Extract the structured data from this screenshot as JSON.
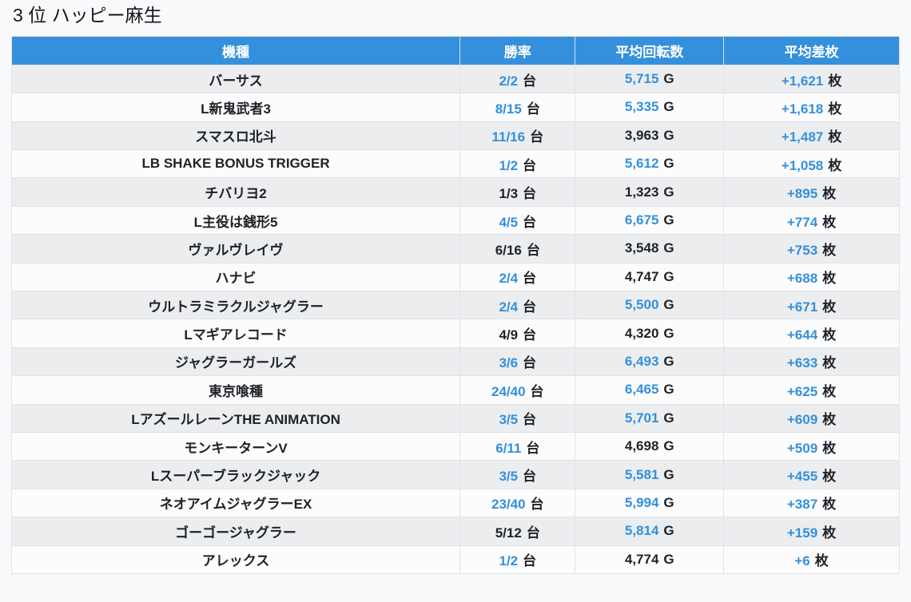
{
  "page": {
    "title": "3 位 ハッピー麻生"
  },
  "colors": {
    "page_bg": "#f8f9fb",
    "header_bg": "#3490dc",
    "header_text": "#ffffff",
    "highlight_text": "#3490dc",
    "normal_text": "#1e2227",
    "row_stripe_bg": "#ebedef",
    "row_plain_bg": "#fcfcfd",
    "border": "#e1e3e7"
  },
  "table": {
    "columns": [
      "機種",
      "勝率",
      "平均回転数",
      "平均差枚"
    ],
    "rows": [
      {
        "name": "バーサス",
        "win": "2/2",
        "win_unit": "台",
        "win_hl": true,
        "spins": "5,715",
        "spins_unit": "G",
        "spins_hl": true,
        "diff": "+1,621",
        "diff_unit": "枚",
        "diff_hl": true
      },
      {
        "name": "L新鬼武者3",
        "win": "8/15",
        "win_unit": "台",
        "win_hl": true,
        "spins": "5,335",
        "spins_unit": "G",
        "spins_hl": true,
        "diff": "+1,618",
        "diff_unit": "枚",
        "diff_hl": true
      },
      {
        "name": "スマスロ北斗",
        "win": "11/16",
        "win_unit": "台",
        "win_hl": true,
        "spins": "3,963",
        "spins_unit": "G",
        "spins_hl": false,
        "diff": "+1,487",
        "diff_unit": "枚",
        "diff_hl": true
      },
      {
        "name": "LB SHAKE BONUS TRIGGER",
        "win": "1/2",
        "win_unit": "台",
        "win_hl": true,
        "spins": "5,612",
        "spins_unit": "G",
        "spins_hl": true,
        "diff": "+1,058",
        "diff_unit": "枚",
        "diff_hl": true
      },
      {
        "name": "チバリヨ2",
        "win": "1/3",
        "win_unit": "台",
        "win_hl": false,
        "spins": "1,323",
        "spins_unit": "G",
        "spins_hl": false,
        "diff": "+895",
        "diff_unit": "枚",
        "diff_hl": true
      },
      {
        "name": "L主役は銭形5",
        "win": "4/5",
        "win_unit": "台",
        "win_hl": true,
        "spins": "6,675",
        "spins_unit": "G",
        "spins_hl": true,
        "diff": "+774",
        "diff_unit": "枚",
        "diff_hl": true
      },
      {
        "name": "ヴァルヴレイヴ",
        "win": "6/16",
        "win_unit": "台",
        "win_hl": false,
        "spins": "3,548",
        "spins_unit": "G",
        "spins_hl": false,
        "diff": "+753",
        "diff_unit": "枚",
        "diff_hl": true
      },
      {
        "name": "ハナビ",
        "win": "2/4",
        "win_unit": "台",
        "win_hl": true,
        "spins": "4,747",
        "spins_unit": "G",
        "spins_hl": false,
        "diff": "+688",
        "diff_unit": "枚",
        "diff_hl": true
      },
      {
        "name": "ウルトラミラクルジャグラー",
        "win": "2/4",
        "win_unit": "台",
        "win_hl": true,
        "spins": "5,500",
        "spins_unit": "G",
        "spins_hl": true,
        "diff": "+671",
        "diff_unit": "枚",
        "diff_hl": true
      },
      {
        "name": "Lマギアレコード",
        "win": "4/9",
        "win_unit": "台",
        "win_hl": false,
        "spins": "4,320",
        "spins_unit": "G",
        "spins_hl": false,
        "diff": "+644",
        "diff_unit": "枚",
        "diff_hl": true
      },
      {
        "name": "ジャグラーガールズ",
        "win": "3/6",
        "win_unit": "台",
        "win_hl": true,
        "spins": "6,493",
        "spins_unit": "G",
        "spins_hl": true,
        "diff": "+633",
        "diff_unit": "枚",
        "diff_hl": true
      },
      {
        "name": "東京喰種",
        "win": "24/40",
        "win_unit": "台",
        "win_hl": true,
        "spins": "6,465",
        "spins_unit": "G",
        "spins_hl": true,
        "diff": "+625",
        "diff_unit": "枚",
        "diff_hl": true
      },
      {
        "name": "LアズールレーンTHE ANIMATION",
        "win": "3/5",
        "win_unit": "台",
        "win_hl": true,
        "spins": "5,701",
        "spins_unit": "G",
        "spins_hl": true,
        "diff": "+609",
        "diff_unit": "枚",
        "diff_hl": true
      },
      {
        "name": "モンキーターンV",
        "win": "6/11",
        "win_unit": "台",
        "win_hl": true,
        "spins": "4,698",
        "spins_unit": "G",
        "spins_hl": false,
        "diff": "+509",
        "diff_unit": "枚",
        "diff_hl": true
      },
      {
        "name": "Lスーパーブラックジャック",
        "win": "3/5",
        "win_unit": "台",
        "win_hl": true,
        "spins": "5,581",
        "spins_unit": "G",
        "spins_hl": true,
        "diff": "+455",
        "diff_unit": "枚",
        "diff_hl": true
      },
      {
        "name": "ネオアイムジャグラーEX",
        "win": "23/40",
        "win_unit": "台",
        "win_hl": true,
        "spins": "5,994",
        "spins_unit": "G",
        "spins_hl": true,
        "diff": "+387",
        "diff_unit": "枚",
        "diff_hl": true
      },
      {
        "name": "ゴーゴージャグラー",
        "win": "5/12",
        "win_unit": "台",
        "win_hl": false,
        "spins": "5,814",
        "spins_unit": "G",
        "spins_hl": true,
        "diff": "+159",
        "diff_unit": "枚",
        "diff_hl": true
      },
      {
        "name": "アレックス",
        "win": "1/2",
        "win_unit": "台",
        "win_hl": true,
        "spins": "4,774",
        "spins_unit": "G",
        "spins_hl": false,
        "diff": "+6",
        "diff_unit": "枚",
        "diff_hl": true
      }
    ]
  },
  "chart_data": {
    "type": "table",
    "title": "3 位 ハッピー麻生",
    "columns": [
      "機種",
      "勝率",
      "平均回転数",
      "平均差枚"
    ],
    "rows": [
      [
        "バーサス",
        "2/2 台",
        "5,715 G",
        "+1,621 枚"
      ],
      [
        "L新鬼武者3",
        "8/15 台",
        "5,335 G",
        "+1,618 枚"
      ],
      [
        "スマスロ北斗",
        "11/16 台",
        "3,963 G",
        "+1,487 枚"
      ],
      [
        "LB SHAKE BONUS TRIGGER",
        "1/2 台",
        "5,612 G",
        "+1,058 枚"
      ],
      [
        "チバリヨ2",
        "1/3 台",
        "1,323 G",
        "+895 枚"
      ],
      [
        "L主役は銭形5",
        "4/5 台",
        "6,675 G",
        "+774 枚"
      ],
      [
        "ヴァルヴレイヴ",
        "6/16 台",
        "3,548 G",
        "+753 枚"
      ],
      [
        "ハナビ",
        "2/4 台",
        "4,747 G",
        "+688 枚"
      ],
      [
        "ウルトラミラクルジャグラー",
        "2/4 台",
        "5,500 G",
        "+671 枚"
      ],
      [
        "Lマギアレコード",
        "4/9 台",
        "4,320 G",
        "+644 枚"
      ],
      [
        "ジャグラーガールズ",
        "3/6 台",
        "6,493 G",
        "+633 枚"
      ],
      [
        "東京喰種",
        "24/40 台",
        "6,465 G",
        "+625 枚"
      ],
      [
        "LアズールレーンTHE ANIMATION",
        "3/5 台",
        "5,701 G",
        "+609 枚"
      ],
      [
        "モンキーターンV",
        "6/11 台",
        "4,698 G",
        "+509 枚"
      ],
      [
        "Lスーパーブラックジャック",
        "3/5 台",
        "5,581 G",
        "+455 枚"
      ],
      [
        "ネオアイムジャグラーEX",
        "23/40 台",
        "5,994 G",
        "+387 枚"
      ],
      [
        "ゴーゴージャグラー",
        "5/12 台",
        "5,814 G",
        "+159 枚"
      ],
      [
        "アレックス",
        "1/2 台",
        "4,774 G",
        "+6 枚"
      ]
    ]
  }
}
